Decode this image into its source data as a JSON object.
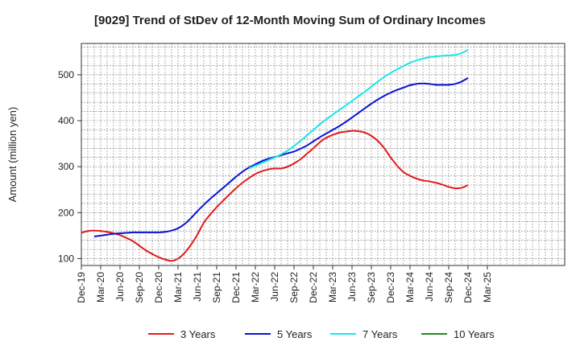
{
  "chart_data": {
    "type": "line",
    "title": "[9029]  Trend of StDev of 12-Month Moving Sum of Ordinary Incomes",
    "xlabel": "",
    "ylabel": "Amount (million yen)",
    "x_range_months": [
      0,
      75
    ],
    "ylim": [
      85,
      568
    ],
    "grid": true,
    "legend_position": "bottom",
    "x_ticks": [
      {
        "month": 0,
        "label": "Dec-19"
      },
      {
        "month": 3,
        "label": "Mar-20"
      },
      {
        "month": 6,
        "label": "Jun-20"
      },
      {
        "month": 9,
        "label": "Sep-20"
      },
      {
        "month": 12,
        "label": "Dec-20"
      },
      {
        "month": 15,
        "label": "Mar-21"
      },
      {
        "month": 18,
        "label": "Jun-21"
      },
      {
        "month": 21,
        "label": "Sep-21"
      },
      {
        "month": 24,
        "label": "Dec-21"
      },
      {
        "month": 27,
        "label": "Mar-22"
      },
      {
        "month": 30,
        "label": "Jun-22"
      },
      {
        "month": 33,
        "label": "Sep-22"
      },
      {
        "month": 36,
        "label": "Dec-22"
      },
      {
        "month": 39,
        "label": "Mar-23"
      },
      {
        "month": 42,
        "label": "Jun-23"
      },
      {
        "month": 45,
        "label": "Sep-23"
      },
      {
        "month": 48,
        "label": "Dec-23"
      },
      {
        "month": 51,
        "label": "Mar-24"
      },
      {
        "month": 54,
        "label": "Jun-24"
      },
      {
        "month": 57,
        "label": "Sep-24"
      },
      {
        "month": 60,
        "label": "Dec-24"
      },
      {
        "month": 63,
        "label": "Mar-25"
      }
    ],
    "y_ticks": [
      100,
      200,
      300,
      400,
      500
    ],
    "series": [
      {
        "name": "3 Years",
        "color": "#e31a1c",
        "points": [
          [
            0,
            156
          ],
          [
            1,
            160
          ],
          [
            2,
            161
          ],
          [
            3,
            160
          ],
          [
            4,
            158
          ],
          [
            5,
            155
          ],
          [
            6,
            151
          ],
          [
            7,
            145
          ],
          [
            8,
            138
          ],
          [
            9,
            128
          ],
          [
            10,
            118
          ],
          [
            11,
            110
          ],
          [
            12,
            103
          ],
          [
            13,
            98
          ],
          [
            14,
            95
          ],
          [
            15,
            100
          ],
          [
            16,
            112
          ],
          [
            17,
            130
          ],
          [
            18,
            152
          ],
          [
            19,
            178
          ],
          [
            20,
            196
          ],
          [
            21,
            212
          ],
          [
            22,
            226
          ],
          [
            23,
            240
          ],
          [
            24,
            253
          ],
          [
            25,
            265
          ],
          [
            26,
            275
          ],
          [
            27,
            284
          ],
          [
            28,
            290
          ],
          [
            29,
            294
          ],
          [
            30,
            296
          ],
          [
            31,
            296
          ],
          [
            32,
            300
          ],
          [
            33,
            307
          ],
          [
            34,
            316
          ],
          [
            35,
            328
          ],
          [
            36,
            340
          ],
          [
            37,
            353
          ],
          [
            38,
            363
          ],
          [
            39,
            369
          ],
          [
            40,
            374
          ],
          [
            41,
            376
          ],
          [
            42,
            378
          ],
          [
            43,
            377
          ],
          [
            44,
            374
          ],
          [
            45,
            367
          ],
          [
            46,
            356
          ],
          [
            47,
            340
          ],
          [
            48,
            320
          ],
          [
            49,
            302
          ],
          [
            50,
            288
          ],
          [
            51,
            280
          ],
          [
            52,
            274
          ],
          [
            53,
            270
          ],
          [
            54,
            268
          ],
          [
            55,
            265
          ],
          [
            56,
            261
          ],
          [
            57,
            256
          ],
          [
            58,
            253
          ],
          [
            59,
            254
          ],
          [
            60,
            260
          ]
        ]
      },
      {
        "name": "5 Years",
        "color": "#0a14d2",
        "points": [
          [
            2,
            148
          ],
          [
            3,
            150
          ],
          [
            4,
            152
          ],
          [
            5,
            154
          ],
          [
            6,
            155
          ],
          [
            7,
            156
          ],
          [
            8,
            157
          ],
          [
            9,
            157
          ],
          [
            10,
            157
          ],
          [
            11,
            157
          ],
          [
            12,
            157
          ],
          [
            13,
            158
          ],
          [
            14,
            161
          ],
          [
            15,
            166
          ],
          [
            16,
            175
          ],
          [
            17,
            188
          ],
          [
            18,
            203
          ],
          [
            19,
            217
          ],
          [
            20,
            230
          ],
          [
            21,
            242
          ],
          [
            22,
            254
          ],
          [
            23,
            266
          ],
          [
            24,
            278
          ],
          [
            25,
            289
          ],
          [
            26,
            298
          ],
          [
            27,
            305
          ],
          [
            28,
            312
          ],
          [
            29,
            317
          ],
          [
            30,
            321
          ],
          [
            31,
            325
          ],
          [
            32,
            329
          ],
          [
            33,
            333
          ],
          [
            34,
            339
          ],
          [
            35,
            346
          ],
          [
            36,
            355
          ],
          [
            37,
            364
          ],
          [
            38,
            372
          ],
          [
            39,
            380
          ],
          [
            40,
            388
          ],
          [
            41,
            397
          ],
          [
            42,
            407
          ],
          [
            43,
            417
          ],
          [
            44,
            427
          ],
          [
            45,
            437
          ],
          [
            46,
            446
          ],
          [
            47,
            454
          ],
          [
            48,
            461
          ],
          [
            49,
            467
          ],
          [
            50,
            472
          ],
          [
            51,
            477
          ],
          [
            52,
            480
          ],
          [
            53,
            481
          ],
          [
            54,
            480
          ],
          [
            55,
            478
          ],
          [
            56,
            478
          ],
          [
            57,
            478
          ],
          [
            58,
            480
          ],
          [
            59,
            485
          ],
          [
            60,
            493
          ]
        ]
      },
      {
        "name": "7 Years",
        "color": "#1ee6e6",
        "points": [
          [
            26,
            296
          ],
          [
            27,
            302
          ],
          [
            28,
            308
          ],
          [
            29,
            314
          ],
          [
            30,
            320
          ],
          [
            31,
            327
          ],
          [
            32,
            335
          ],
          [
            33,
            345
          ],
          [
            34,
            356
          ],
          [
            35,
            368
          ],
          [
            36,
            380
          ],
          [
            37,
            392
          ],
          [
            38,
            403
          ],
          [
            39,
            413
          ],
          [
            40,
            423
          ],
          [
            41,
            433
          ],
          [
            42,
            443
          ],
          [
            43,
            453
          ],
          [
            44,
            463
          ],
          [
            45,
            474
          ],
          [
            46,
            485
          ],
          [
            47,
            495
          ],
          [
            48,
            504
          ],
          [
            49,
            512
          ],
          [
            50,
            519
          ],
          [
            51,
            526
          ],
          [
            52,
            531
          ],
          [
            53,
            535
          ],
          [
            54,
            538
          ],
          [
            55,
            540
          ],
          [
            56,
            541
          ],
          [
            57,
            542
          ],
          [
            58,
            543
          ],
          [
            59,
            547
          ],
          [
            60,
            554
          ]
        ]
      },
      {
        "name": "10 Years",
        "color": "#1e8c1e",
        "points": []
      }
    ]
  }
}
